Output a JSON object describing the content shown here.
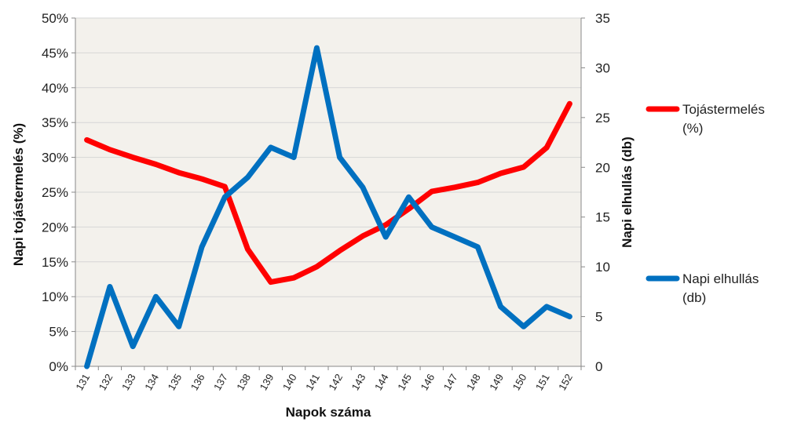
{
  "chart_data": {
    "type": "line",
    "title": "",
    "xlabel": "Napok száma",
    "ylabel_left": "Napi tojástermelés (%)",
    "ylabel_right": "Napi elhullás (db)",
    "x": [
      "131",
      "132",
      "133",
      "134",
      "135",
      "136",
      "137",
      "138",
      "139",
      "140",
      "141",
      "142",
      "143",
      "144",
      "145",
      "146",
      "147",
      "148",
      "149",
      "150",
      "151",
      "152"
    ],
    "y_left": {
      "min": 0,
      "max": 0.5,
      "ticks": [
        "0%",
        "5%",
        "10%",
        "15%",
        "20%",
        "25%",
        "30%",
        "35%",
        "40%",
        "45%",
        "50%"
      ]
    },
    "y_right": {
      "min": 0,
      "max": 35,
      "ticks": [
        "0",
        "5",
        "10",
        "15",
        "20",
        "25",
        "30",
        "35"
      ]
    },
    "grid": "horizontal",
    "legend_position": "right",
    "plot_background": "#f3f1ec",
    "series": [
      {
        "name": "Tojástermelés (%)",
        "legend_lines": [
          "Tojástermelés",
          "(%)"
        ],
        "axis": "left",
        "color": "#ff0000",
        "values": [
          0.325,
          0.311,
          0.3,
          0.29,
          0.278,
          0.269,
          0.258,
          0.168,
          0.121,
          0.127,
          0.143,
          0.166,
          0.187,
          0.203,
          0.226,
          0.251,
          0.257,
          0.264,
          0.277,
          0.286,
          0.314,
          0.377
        ]
      },
      {
        "name": "Napi elhullás (db)",
        "legend_lines": [
          "Napi elhullás",
          "(db)"
        ],
        "axis": "right",
        "color": "#0070c0",
        "values": [
          0,
          8,
          2,
          7,
          4,
          12,
          17,
          19,
          22,
          21,
          32,
          21,
          18,
          13,
          17,
          14,
          13,
          12,
          6,
          4,
          6,
          5
        ]
      }
    ]
  }
}
